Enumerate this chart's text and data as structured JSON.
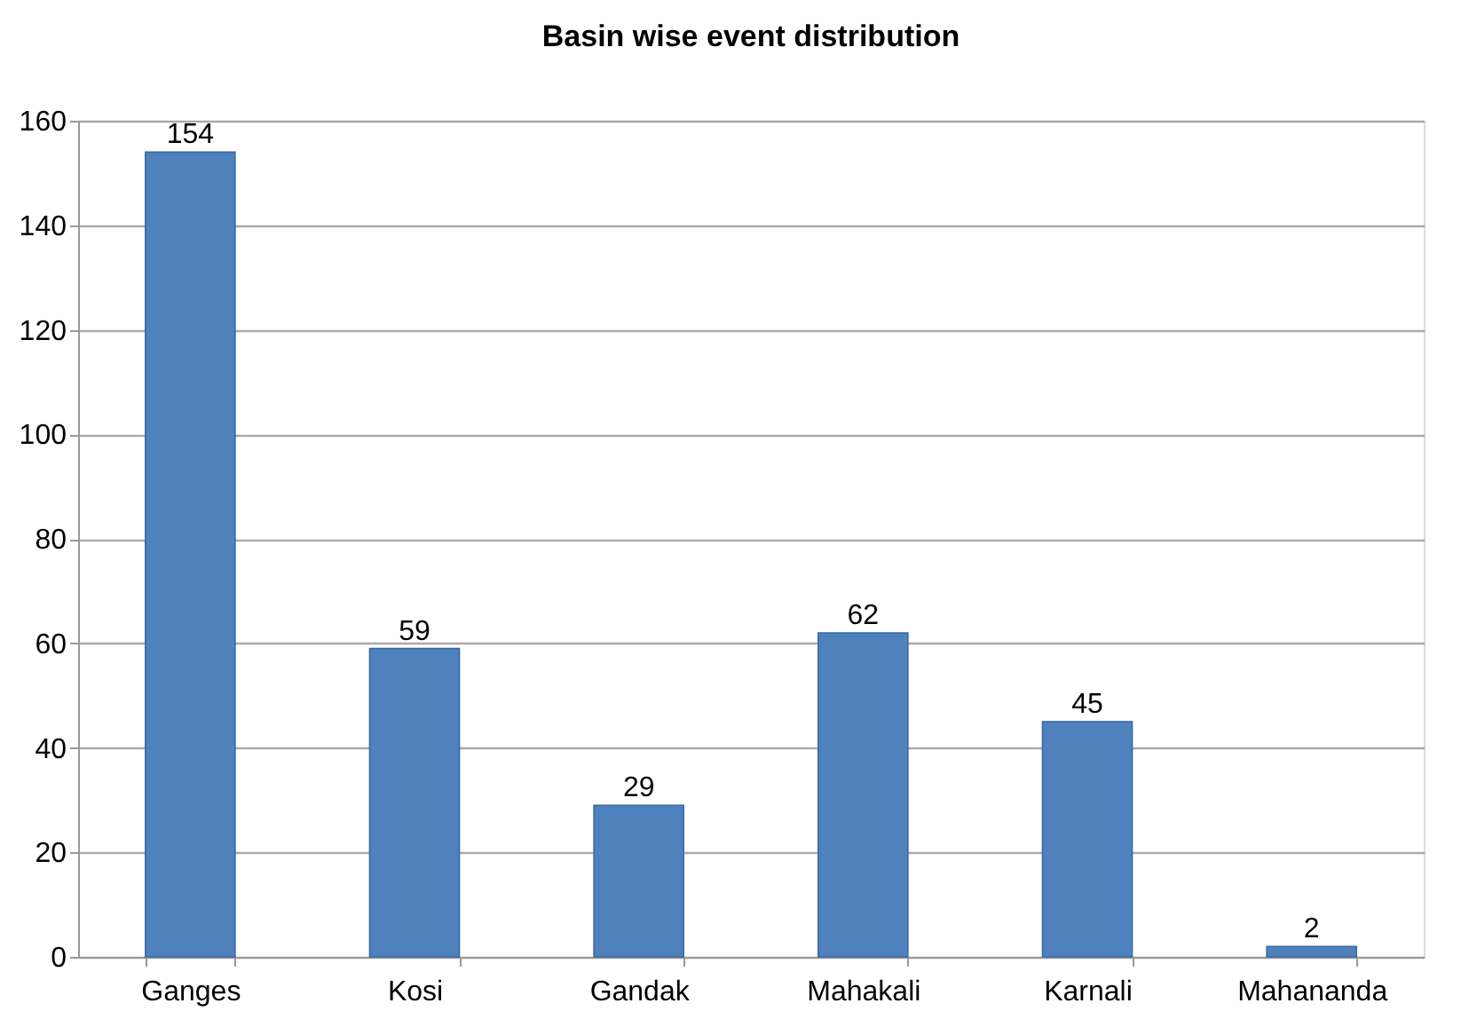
{
  "chart_data": {
    "type": "bar",
    "title": "Basin wise event distribution",
    "categories": [
      "Ganges",
      "Kosi",
      "Gandak",
      "Mahakali",
      "Karnali",
      "Mahananda"
    ],
    "values": [
      154,
      59,
      29,
      62,
      45,
      2
    ],
    "color": "#4f81bd",
    "ylim": [
      0,
      160
    ],
    "yticks": [
      0,
      20,
      40,
      60,
      80,
      100,
      120,
      140,
      160
    ],
    "grid": "y",
    "data_labels": true
  }
}
